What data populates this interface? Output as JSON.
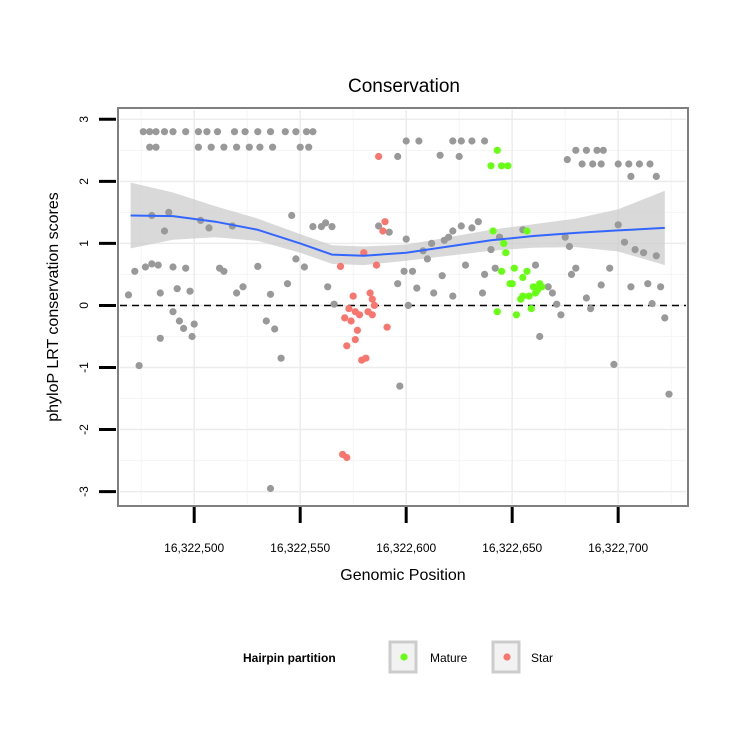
{
  "chart_data": {
    "type": "scatter",
    "title": "Conservation",
    "xlabel": "Genomic Position",
    "ylabel": "phyloP LRT conservation scores",
    "xlim": [
      16322465,
      16322732
    ],
    "ylim": [
      -3.2,
      3.15
    ],
    "x_ticks": [
      16322500,
      16322550,
      16322600,
      16322650,
      16322700
    ],
    "x_tick_labels": [
      "16,322,500",
      "16,322,550",
      "16,322,600",
      "16,322,650",
      "16,322,700"
    ],
    "y_ticks": [
      -3,
      -2,
      -1,
      0,
      1,
      2,
      3
    ],
    "y_tick_labels": [
      "-3",
      "-2",
      "-1",
      "0",
      "1",
      "2",
      "3"
    ],
    "grid": true,
    "reference_line": {
      "y": 0,
      "style": "dashed"
    },
    "legend": {
      "title": "Hairpin partition",
      "placement": "bottom",
      "entries": [
        {
          "label": "Mature",
          "color": "#66ff11"
        },
        {
          "label": "Star",
          "color": "#f8766d"
        }
      ]
    },
    "colors": {
      "other": "#999999",
      "Mature": "#66ff11",
      "Star": "#f8766d",
      "smooth": "#3366ff",
      "band": "#cccccc"
    },
    "series": [
      {
        "name": "Other",
        "points": [
          [
            16322476,
            2.8
          ],
          [
            16322479,
            2.8
          ],
          [
            16322482,
            2.8
          ],
          [
            16322486,
            2.8
          ],
          [
            16322490,
            2.8
          ],
          [
            16322496,
            2.8
          ],
          [
            16322502,
            2.8
          ],
          [
            16322506,
            2.8
          ],
          [
            16322511,
            2.8
          ],
          [
            16322519,
            2.8
          ],
          [
            16322524,
            2.8
          ],
          [
            16322530,
            2.8
          ],
          [
            16322536,
            2.8
          ],
          [
            16322543,
            2.8
          ],
          [
            16322548,
            2.8
          ],
          [
            16322553,
            2.8
          ],
          [
            16322556,
            2.8
          ],
          [
            16322479,
            2.55
          ],
          [
            16322482,
            2.55
          ],
          [
            16322502,
            2.55
          ],
          [
            16322508,
            2.55
          ],
          [
            16322514,
            2.55
          ],
          [
            16322520,
            2.55
          ],
          [
            16322526,
            2.55
          ],
          [
            16322531,
            2.55
          ],
          [
            16322537,
            2.55
          ],
          [
            16322550,
            2.55
          ],
          [
            16322554,
            2.55
          ],
          [
            16322600,
            2.65
          ],
          [
            16322606,
            2.65
          ],
          [
            16322622,
            2.65
          ],
          [
            16322626,
            2.65
          ],
          [
            16322631,
            2.65
          ],
          [
            16322637,
            2.65
          ],
          [
            16322596,
            2.4
          ],
          [
            16322616,
            2.42
          ],
          [
            16322625,
            2.4
          ],
          [
            16322676,
            2.35
          ],
          [
            16322680,
            2.5
          ],
          [
            16322685,
            2.5
          ],
          [
            16322690,
            2.5
          ],
          [
            16322693,
            2.5
          ],
          [
            16322683,
            2.28
          ],
          [
            16322688,
            2.28
          ],
          [
            16322692,
            2.28
          ],
          [
            16322700,
            2.28
          ],
          [
            16322705,
            2.28
          ],
          [
            16322710,
            2.28
          ],
          [
            16322715,
            2.28
          ],
          [
            16322718,
            2.08
          ],
          [
            16322706,
            2.08
          ],
          [
            16322469,
            0.17
          ],
          [
            16322472,
            0.55
          ],
          [
            16322474,
            -0.97
          ],
          [
            16322477,
            0.62
          ],
          [
            16322480,
            1.45
          ],
          [
            16322480,
            0.67
          ],
          [
            16322483,
            0.65
          ],
          [
            16322484,
            0.2
          ],
          [
            16322484,
            -0.53
          ],
          [
            16322486,
            1.2
          ],
          [
            16322488,
            1.5
          ],
          [
            16322490,
            0.62
          ],
          [
            16322490,
            -0.1
          ],
          [
            16322492,
            0.27
          ],
          [
            16322493,
            -0.25
          ],
          [
            16322495,
            -0.37
          ],
          [
            16322496,
            0.6
          ],
          [
            16322498,
            0.23
          ],
          [
            16322499,
            -0.5
          ],
          [
            16322500,
            -0.3
          ],
          [
            16322503,
            1.37
          ],
          [
            16322507,
            1.25
          ],
          [
            16322512,
            0.6
          ],
          [
            16322514,
            0.55
          ],
          [
            16322518,
            1.28
          ],
          [
            16322520,
            0.2
          ],
          [
            16322523,
            0.3
          ],
          [
            16322530,
            0.63
          ],
          [
            16322534,
            -0.25
          ],
          [
            16322536,
            0.18
          ],
          [
            16322538,
            -0.38
          ],
          [
            16322541,
            -0.85
          ],
          [
            16322544,
            0.35
          ],
          [
            16322546,
            1.45
          ],
          [
            16322548,
            0.75
          ],
          [
            16322552,
            0.62
          ],
          [
            16322556,
            1.27
          ],
          [
            16322560,
            1.27
          ],
          [
            16322562,
            1.33
          ],
          [
            16322563,
            0.3
          ],
          [
            16322565,
            1.27
          ],
          [
            16322566,
            0.02
          ],
          [
            16322587,
            1.28
          ],
          [
            16322592,
            1.18
          ],
          [
            16322596,
            0.35
          ],
          [
            16322597,
            -1.3
          ],
          [
            16322599,
            0.55
          ],
          [
            16322600,
            1.07
          ],
          [
            16322601,
            0.0
          ],
          [
            16322603,
            0.55
          ],
          [
            16322605,
            0.28
          ],
          [
            16322608,
            0.88
          ],
          [
            16322610,
            0.75
          ],
          [
            16322612,
            1.0
          ],
          [
            16322613,
            0.2
          ],
          [
            16322617,
            0.48
          ],
          [
            16322618,
            1.05
          ],
          [
            16322620,
            1.1
          ],
          [
            16322622,
            1.2
          ],
          [
            16322622,
            0.15
          ],
          [
            16322626,
            1.28
          ],
          [
            16322628,
            0.65
          ],
          [
            16322631,
            1.25
          ],
          [
            16322634,
            1.35
          ],
          [
            16322636,
            0.2
          ],
          [
            16322637,
            0.5
          ],
          [
            16322640,
            0.9
          ],
          [
            16322642,
            0.6
          ],
          [
            16322644,
            1.1
          ],
          [
            16322655,
            1.22
          ],
          [
            16322661,
            0.65
          ],
          [
            16322663,
            -0.5
          ],
          [
            16322667,
            0.3
          ],
          [
            16322669,
            0.2
          ],
          [
            16322671,
            0.02
          ],
          [
            16322673,
            -0.15
          ],
          [
            16322675,
            1.1
          ],
          [
            16322677,
            0.95
          ],
          [
            16322678,
            0.5
          ],
          [
            16322680,
            0.6
          ],
          [
            16322685,
            0.12
          ],
          [
            16322687,
            -0.05
          ],
          [
            16322692,
            0.33
          ],
          [
            16322696,
            0.6
          ],
          [
            16322698,
            -0.95
          ],
          [
            16322700,
            1.3
          ],
          [
            16322703,
            1.02
          ],
          [
            16322706,
            0.3
          ],
          [
            16322708,
            0.9
          ],
          [
            16322712,
            0.85
          ],
          [
            16322714,
            0.35
          ],
          [
            16322716,
            0.03
          ],
          [
            16322718,
            0.8
          ],
          [
            16322720,
            0.3
          ],
          [
            16322722,
            -0.2
          ],
          [
            16322724,
            -1.43
          ],
          [
            16322536,
            -2.95
          ]
        ]
      },
      {
        "name": "Mature",
        "points": [
          [
            16322640,
            2.25
          ],
          [
            16322643,
            2.5
          ],
          [
            16322645,
            2.25
          ],
          [
            16322648,
            2.25
          ],
          [
            16322641,
            1.2
          ],
          [
            16322643,
            -0.1
          ],
          [
            16322645,
            0.55
          ],
          [
            16322647,
            0.85
          ],
          [
            16322649,
            0.35
          ],
          [
            16322651,
            0.6
          ],
          [
            16322652,
            -0.15
          ],
          [
            16322654,
            0.1
          ],
          [
            16322655,
            0.45
          ],
          [
            16322657,
            0.55
          ],
          [
            16322658,
            0.15
          ],
          [
            16322659,
            -0.05
          ],
          [
            16322660,
            0.3
          ],
          [
            16322661,
            0.2
          ],
          [
            16322662,
            0.25
          ],
          [
            16322663,
            0.35
          ],
          [
            16322664,
            0.3
          ],
          [
            16322646,
            1.0
          ],
          [
            16322650,
            0.35
          ],
          [
            16322655,
            0.15
          ],
          [
            16322657,
            1.2
          ]
        ]
      },
      {
        "name": "Star",
        "points": [
          [
            16322569,
            0.63
          ],
          [
            16322571,
            -0.2
          ],
          [
            16322572,
            -0.65
          ],
          [
            16322573,
            -0.05
          ],
          [
            16322574,
            -0.25
          ],
          [
            16322575,
            0.15
          ],
          [
            16322576,
            -0.55
          ],
          [
            16322577,
            -0.4
          ],
          [
            16322578,
            -0.15
          ],
          [
            16322580,
            0.85
          ],
          [
            16322581,
            -0.85
          ],
          [
            16322582,
            -0.1
          ],
          [
            16322583,
            0.2
          ],
          [
            16322584,
            0.1
          ],
          [
            16322585,
            0.0
          ],
          [
            16322586,
            0.65
          ],
          [
            16322587,
            2.4
          ],
          [
            16322589,
            1.2
          ],
          [
            16322590,
            1.35
          ],
          [
            16322591,
            -0.35
          ],
          [
            16322570,
            -2.4
          ],
          [
            16322572,
            -2.45
          ],
          [
            16322576,
            -0.1
          ],
          [
            16322579,
            -0.88
          ],
          [
            16322584,
            -0.15
          ]
        ]
      }
    ],
    "smooth_line": {
      "x": [
        16322470,
        16322490,
        16322510,
        16322530,
        16322550,
        16322565,
        16322580,
        16322600,
        16322620,
        16322640,
        16322660,
        16322680,
        16322700,
        16322722
      ],
      "y": [
        1.45,
        1.44,
        1.35,
        1.22,
        1.0,
        0.82,
        0.8,
        0.85,
        0.95,
        1.05,
        1.12,
        1.17,
        1.21,
        1.25
      ],
      "upper": [
        1.98,
        1.82,
        1.6,
        1.4,
        1.15,
        0.97,
        0.95,
        0.98,
        1.1,
        1.22,
        1.31,
        1.4,
        1.55,
        1.85
      ],
      "lower": [
        0.92,
        1.06,
        1.1,
        1.04,
        0.85,
        0.67,
        0.65,
        0.72,
        0.8,
        0.88,
        0.93,
        0.94,
        0.87,
        0.65
      ]
    }
  }
}
